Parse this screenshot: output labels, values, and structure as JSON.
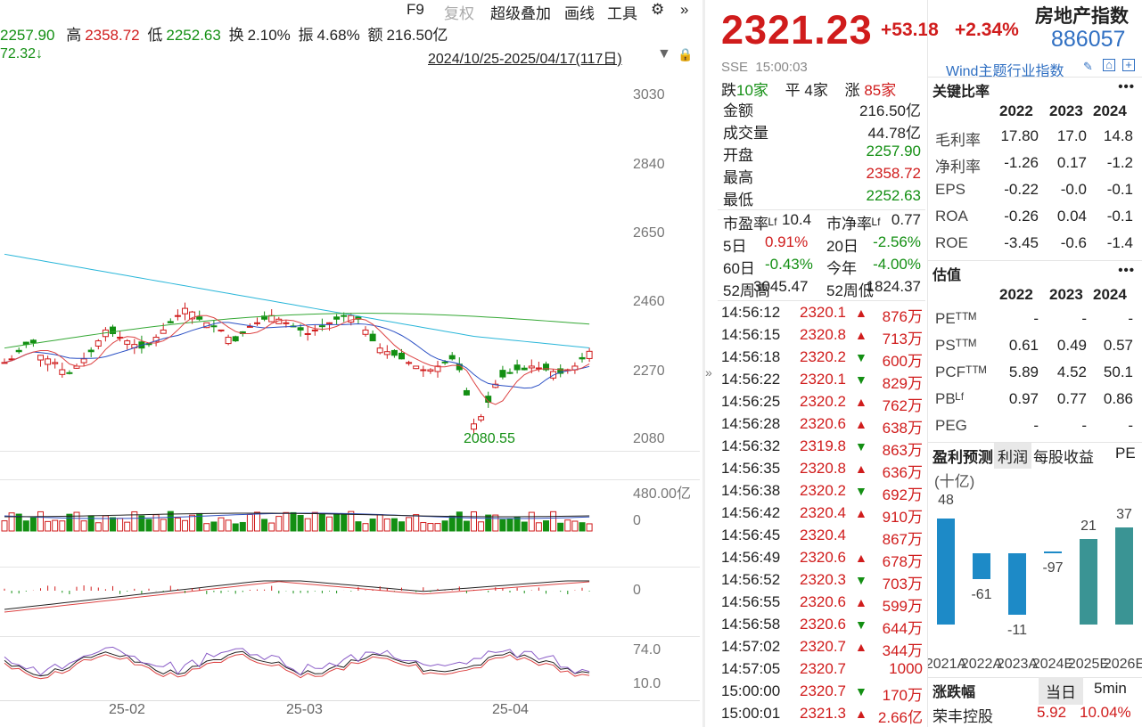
{
  "toolbar": {
    "f9": "F9",
    "fuquan": "复权",
    "overlay": "超级叠加",
    "draw": "画线",
    "tools": "工具"
  },
  "quote_row": {
    "open_val": "2257.90",
    "high_label": "高",
    "high_val": "2358.72",
    "low_label": "低",
    "low_val": "2252.63",
    "turnover_label": "换",
    "turnover_val": "2.10%",
    "amp_label": "振",
    "amp_val": "4.68%",
    "amount_label": "额",
    "amount_val": "216.50亿"
  },
  "row3": {
    "left_val": "72.32↓",
    "date_range": "2024/10/25-2025/04/17(117日)"
  },
  "kline": {
    "y_ticks": [
      "3030",
      "2840",
      "2650",
      "2460",
      "2270",
      "2080"
    ],
    "low_annotation": "2080.55",
    "vol_ticks": [
      "480.00亿",
      "0"
    ],
    "macd_ticks": [
      "0"
    ],
    "kdj_ticks": [
      "74.0",
      "10.0"
    ],
    "x_ticks": [
      "25-02",
      "25-03",
      "25-04"
    ]
  },
  "header": {
    "price": "2321.23",
    "change": "+53.18",
    "change_pct": "+2.34%",
    "name": "房地产指数",
    "code": "886057",
    "exchange": "SSE",
    "time": "15:00:03",
    "category": "Wind主题行业指数"
  },
  "breadth": {
    "down_label": "跌",
    "down_num": "10家",
    "flat_label": "平",
    "flat_num": "4家",
    "up_label": "涨",
    "up_num": "85家"
  },
  "stats": [
    {
      "k": "金额",
      "v": "216.50亿",
      "c": "#222"
    },
    {
      "k": "成交量",
      "v": "44.78亿",
      "c": "#222"
    },
    {
      "k": "开盘",
      "v": "2257.90",
      "c": "#138f13"
    },
    {
      "k": "最高",
      "v": "2358.72",
      "c": "#d01c1c"
    },
    {
      "k": "最低",
      "v": "2252.63",
      "c": "#138f13"
    }
  ],
  "ratios": {
    "pe_label": "市盈率ᴸᶠ",
    "pe_val": "10.4",
    "pb_label": "市净率ᴸᶠ",
    "pb_val": "0.77",
    "d5_label": "5日",
    "d5_val": "0.91%",
    "d20_label": "20日",
    "d20_val": "-2.56%",
    "d60_label": "60日",
    "d60_val": "-0.43%",
    "ytd_label": "今年",
    "ytd_val": "-4.00%",
    "h52_label": "52周高",
    "h52_val": "3045.47",
    "l52_label": "52周低",
    "l52_val": "1824.37"
  },
  "ticks": [
    {
      "t": "14:56:12",
      "p": "2320.1",
      "d": "up",
      "v": "876万"
    },
    {
      "t": "14:56:15",
      "p": "2320.8",
      "d": "up",
      "v": "713万"
    },
    {
      "t": "14:56:18",
      "p": "2320.2",
      "d": "down",
      "v": "600万"
    },
    {
      "t": "14:56:22",
      "p": "2320.1",
      "d": "down",
      "v": "829万"
    },
    {
      "t": "14:56:25",
      "p": "2320.2",
      "d": "up",
      "v": "762万"
    },
    {
      "t": "14:56:28",
      "p": "2320.6",
      "d": "up",
      "v": "638万"
    },
    {
      "t": "14:56:32",
      "p": "2319.8",
      "d": "down",
      "v": "863万"
    },
    {
      "t": "14:56:35",
      "p": "2320.8",
      "d": "up",
      "v": "636万"
    },
    {
      "t": "14:56:38",
      "p": "2320.2",
      "d": "down",
      "v": "692万"
    },
    {
      "t": "14:56:42",
      "p": "2320.4",
      "d": "up",
      "v": "910万"
    },
    {
      "t": "14:56:45",
      "p": "2320.4",
      "d": "none",
      "v": "867万"
    },
    {
      "t": "14:56:49",
      "p": "2320.6",
      "d": "up",
      "v": "678万"
    },
    {
      "t": "14:56:52",
      "p": "2320.3",
      "d": "down",
      "v": "703万"
    },
    {
      "t": "14:56:55",
      "p": "2320.6",
      "d": "up",
      "v": "599万"
    },
    {
      "t": "14:56:58",
      "p": "2320.6",
      "d": "down",
      "v": "644万"
    },
    {
      "t": "14:57:02",
      "p": "2320.7",
      "d": "up",
      "v": "344万"
    },
    {
      "t": "14:57:05",
      "p": "2320.7",
      "d": "none",
      "v": "1000"
    },
    {
      "t": "15:00:00",
      "p": "2320.7",
      "d": "down",
      "v": "170万"
    },
    {
      "t": "15:00:01",
      "p": "2321.3",
      "d": "up",
      "v": "2.66亿"
    }
  ],
  "key_ratios": {
    "title": "关键比率",
    "years": [
      "2022",
      "2023",
      "2024"
    ],
    "rows": [
      {
        "name": "毛利率",
        "vals": [
          "17.80",
          "17.0",
          "14.8"
        ]
      },
      {
        "name": "净利率",
        "vals": [
          "-1.26",
          "0.17",
          "-1.2"
        ]
      },
      {
        "name": "EPS",
        "vals": [
          "-0.22",
          "-0.0",
          "-0.1"
        ]
      },
      {
        "name": "ROA",
        "vals": [
          "-0.26",
          "0.04",
          "-0.1"
        ]
      },
      {
        "name": "ROE",
        "vals": [
          "-3.45",
          "-0.6",
          "-1.4"
        ]
      }
    ]
  },
  "valuation": {
    "title": "估值",
    "years": [
      "2022",
      "2023",
      "2024"
    ],
    "rows": [
      {
        "name": "PEᵀᵀᴹ",
        "vals": [
          "-",
          "-",
          "-"
        ]
      },
      {
        "name": "PSᵀᵀᴹ",
        "vals": [
          "0.61",
          "0.49",
          "0.57"
        ]
      },
      {
        "name": "PCFᵀᵀᴹ",
        "vals": [
          "5.89",
          "4.52",
          "50.1"
        ]
      },
      {
        "name": "PBᴸᶠ",
        "vals": [
          "0.97",
          "0.77",
          "0.86"
        ]
      },
      {
        "name": "PEG",
        "vals": [
          "-",
          "-",
          "-"
        ]
      }
    ]
  },
  "profit_tabs": {
    "tab1": "盈利预测",
    "tab2": "利润",
    "tab3": "每股收益",
    "tab4": "PE",
    "unit": "(十亿)"
  },
  "chart_data": {
    "type": "bar",
    "categories": [
      "2021A",
      "2022A",
      "2023A",
      "2024E",
      "2025E",
      "2026E"
    ],
    "values": [
      48,
      -61,
      -11,
      -97,
      21,
      37
    ],
    "title": "",
    "xlabel": "",
    "ylabel": "(十亿)"
  },
  "movers": {
    "title": "涨跌幅",
    "tab1": "当日",
    "tab2": "5min",
    "name": "荣丰控股",
    "price": "5.92",
    "pct": "10.04%"
  }
}
